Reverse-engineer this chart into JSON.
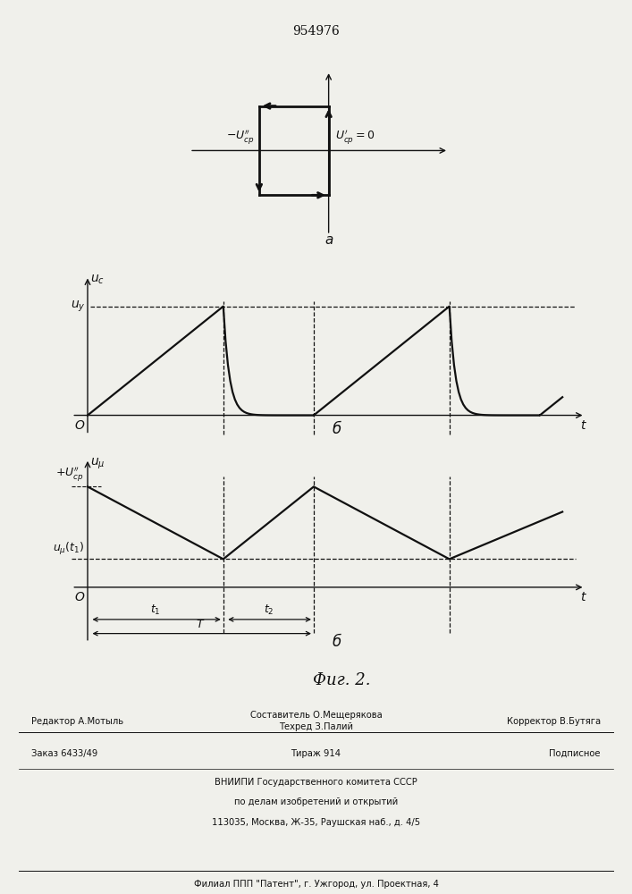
{
  "patent_number": "954976",
  "fig_label": "Фиг. 2.",
  "label_a": "a",
  "label_b": "б",
  "label_delta": "б",
  "bg_color": "#f0f0eb",
  "line_color": "#111111",
  "t1": 3.0,
  "t2": 5.0,
  "t3": 8.0,
  "t4": 10.5,
  "uy": 1.0,
  "ucp": 1.0,
  "uit": 0.28
}
